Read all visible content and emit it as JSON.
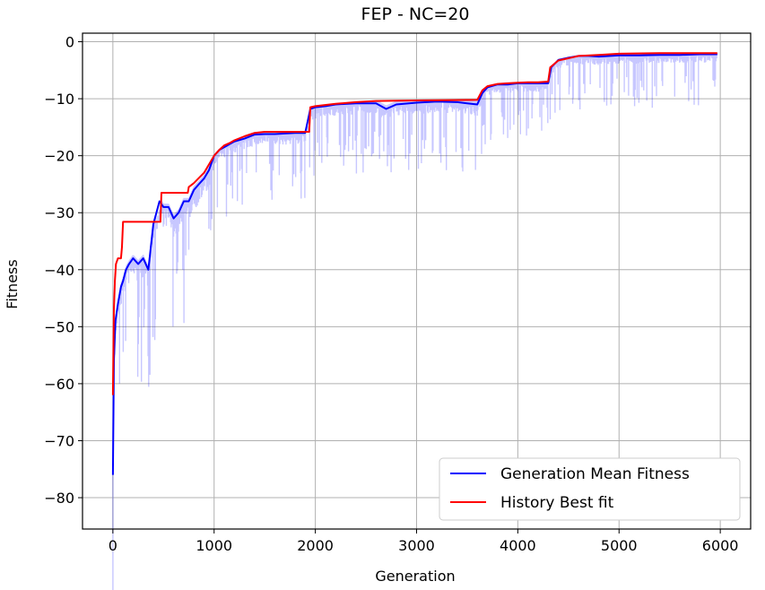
{
  "chart_data": {
    "type": "line",
    "title": "FEP - NC=20",
    "xlabel": "Generation",
    "ylabel": "Fitness",
    "xlim": [
      -300,
      6300
    ],
    "ylim": [
      -85.5,
      1.5
    ],
    "xticks": [
      0,
      1000,
      2000,
      3000,
      4000,
      5000,
      6000
    ],
    "xtick_labels": [
      "0",
      "1000",
      "2000",
      "3000",
      "4000",
      "5000",
      "6000"
    ],
    "yticks": [
      0,
      -10,
      -20,
      -30,
      -40,
      -50,
      -60,
      -70,
      -80
    ],
    "ytick_labels": [
      "0",
      "−10",
      "−20",
      "−30",
      "−40",
      "−50",
      "−60",
      "−70",
      "−80"
    ],
    "grid": true,
    "legend_position": "lower-right",
    "series": [
      {
        "name": "Generation Mean Fitness",
        "color": "#0000ff",
        "x": [
          0,
          10,
          25,
          50,
          80,
          100,
          130,
          160,
          200,
          250,
          300,
          350,
          400,
          430,
          460,
          500,
          550,
          600,
          650,
          700,
          750,
          800,
          850,
          900,
          950,
          1000,
          1050,
          1100,
          1150,
          1200,
          1300,
          1400,
          1500,
          1600,
          1700,
          1800,
          1900,
          1950,
          2000,
          2100,
          2200,
          2400,
          2600,
          2700,
          2800,
          3000,
          3200,
          3400,
          3500,
          3600,
          3650,
          3700,
          3800,
          3900,
          4000,
          4100,
          4200,
          4300,
          4330,
          4400,
          4500,
          4600,
          4700,
          4800,
          5000,
          5200,
          5400,
          5600,
          5800,
          5970
        ],
        "y": [
          -76,
          -56,
          -49,
          -46,
          -43,
          -42,
          -40,
          -39,
          -38,
          -39,
          -38,
          -40,
          -32,
          -30,
          -28,
          -29,
          -29,
          -31,
          -30,
          -28,
          -28,
          -26,
          -25,
          -24,
          -22.5,
          -20,
          -19,
          -18.5,
          -18,
          -17.5,
          -17,
          -16.3,
          -16.2,
          -16.2,
          -16.1,
          -16,
          -16,
          -11.8,
          -11.5,
          -11.3,
          -11,
          -10.8,
          -10.8,
          -11.8,
          -11,
          -10.7,
          -10.5,
          -10.6,
          -10.8,
          -11,
          -9,
          -8,
          -7.5,
          -7.5,
          -7.3,
          -7.3,
          -7.3,
          -7.3,
          -4.5,
          -3.2,
          -2.8,
          -2.5,
          -2.5,
          -2.6,
          -2.4,
          -2.4,
          -2.3,
          -2.3,
          -2.2,
          -2.2
        ]
      },
      {
        "name": "History Best fit",
        "color": "#ff0000",
        "x": [
          0,
          10,
          20,
          30,
          50,
          80,
          90,
          100,
          470,
          480,
          740,
          750,
          800,
          900,
          1000,
          1050,
          1100,
          1150,
          1200,
          1300,
          1400,
          1500,
          1940,
          1950,
          2000,
          2200,
          2400,
          2600,
          3000,
          3600,
          3650,
          3700,
          3800,
          3900,
          4000,
          4100,
          4200,
          4300,
          4320,
          4400,
          4500,
          4600,
          4800,
          5000,
          5400,
          5600,
          5970
        ],
        "y": [
          -62,
          -47,
          -42,
          -39,
          -38,
          -38,
          -36,
          -31.6,
          -31.6,
          -26.5,
          -26.5,
          -25.5,
          -24.8,
          -23,
          -20,
          -19,
          -18.2,
          -17.8,
          -17.3,
          -16.6,
          -16,
          -15.8,
          -15.8,
          -11.5,
          -11.3,
          -10.9,
          -10.6,
          -10.4,
          -10.3,
          -10.2,
          -8.5,
          -7.8,
          -7.4,
          -7.3,
          -7.2,
          -7.1,
          -7.1,
          -7.0,
          -4.5,
          -3.3,
          -2.9,
          -2.5,
          -2.3,
          -2.1,
          -2.0,
          -2.0,
          -2.0
        ]
      }
    ],
    "fill_band": {
      "color": "#0000ff",
      "opacity": 0.22
    }
  }
}
